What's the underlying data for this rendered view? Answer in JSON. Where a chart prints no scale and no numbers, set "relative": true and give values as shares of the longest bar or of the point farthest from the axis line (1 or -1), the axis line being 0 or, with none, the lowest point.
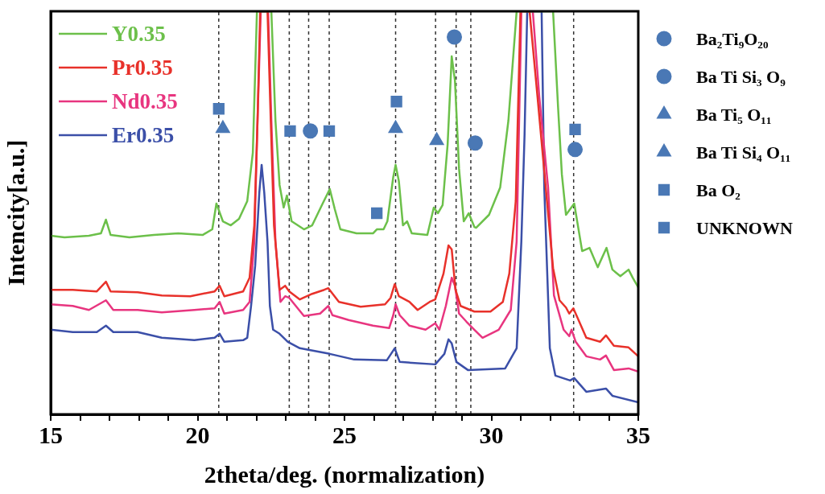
{
  "chart_data": {
    "type": "line",
    "relative": true,
    "xlabel": "2theta/deg. (normalization)",
    "ylabel": "Intencity[a.u.]",
    "xlim": [
      15,
      35
    ],
    "xticks": [
      15,
      {
        "value": 16,
        "label": null
      },
      {
        "value": 17,
        "label": null
      },
      {
        "value": 18,
        "label": null
      },
      {
        "value": 19,
        "label": null
      },
      20,
      {
        "value": 21,
        "label": null
      },
      {
        "value": 22,
        "label": null
      },
      {
        "value": 23,
        "label": null
      },
      {
        "value": 24,
        "label": null
      },
      25,
      {
        "value": 26,
        "label": null
      },
      {
        "value": 27,
        "label": null
      },
      {
        "value": 28,
        "label": null
      },
      {
        "value": 29,
        "label": null
      },
      30,
      {
        "value": 31,
        "label": null
      },
      {
        "value": 32,
        "label": null
      },
      {
        "value": 33,
        "label": null
      },
      {
        "value": 34,
        "label": null
      },
      35
    ],
    "legend": "right",
    "series": [
      {
        "name": "Y0.35",
        "color": "#6cc04a",
        "x": [
          15,
          15.47,
          16.3,
          16.71,
          16.88,
          17.04,
          17.68,
          18.51,
          19.34,
          20.17,
          20.5,
          20.64,
          20.86,
          21.13,
          21.41,
          21.69,
          21.88,
          22.02,
          22.51,
          22.65,
          22.79,
          22.93,
          23.04,
          23.2,
          23.62,
          23.9,
          24.23,
          24.5,
          24.67,
          24.86,
          25.41,
          25.97,
          26.1,
          26.33,
          26.46,
          26.66,
          26.74,
          26.85,
          26.99,
          27.13,
          27.29,
          27.82,
          28.04,
          28.18,
          28.34,
          28.51,
          28.65,
          28.76,
          28.9,
          29.06,
          29.23,
          29.42,
          29.48,
          29.92,
          30.3,
          30.58,
          30.86,
          32.1,
          32.27,
          32.4,
          32.54,
          32.82,
          33.09,
          33.34,
          33.62,
          33.92,
          34.12,
          34.39,
          34.67,
          34.81,
          35
        ],
        "values": [
          0.443,
          0.439,
          0.443,
          0.449,
          0.483,
          0.445,
          0.439,
          0.445,
          0.449,
          0.445,
          0.459,
          0.523,
          0.479,
          0.469,
          0.485,
          0.529,
          0.649,
          1,
          1,
          0.729,
          0.569,
          0.513,
          0.543,
          0.479,
          0.459,
          0.469,
          0.519,
          0.559,
          0.509,
          0.459,
          0.449,
          0.449,
          0.459,
          0.459,
          0.479,
          0.589,
          0.619,
          0.579,
          0.469,
          0.479,
          0.449,
          0.445,
          0.513,
          0.499,
          0.519,
          0.669,
          0.888,
          0.828,
          0.609,
          0.479,
          0.499,
          0.465,
          0.463,
          0.495,
          0.563,
          0.729,
          1,
          1,
          0.762,
          0.595,
          0.495,
          0.523,
          0.405,
          0.413,
          0.365,
          0.413,
          0.359,
          0.343,
          0.359,
          0.339,
          0.315
        ]
      },
      {
        "name": "Pr0.35",
        "color": "#e8312a",
        "x": [
          15,
          15.75,
          16.57,
          16.88,
          17.04,
          17.96,
          18.78,
          19.75,
          20.58,
          20.75,
          20.91,
          21.55,
          21.77,
          21.93,
          22.04,
          22.13,
          22.38,
          22.49,
          22.6,
          22.79,
          22.98,
          23.12,
          23.48,
          23.9,
          24.31,
          24.45,
          24.81,
          25.55,
          26.38,
          26.57,
          26.71,
          26.85,
          27.21,
          27.49,
          27.9,
          28.09,
          28.37,
          28.54,
          28.65,
          28.78,
          28.95,
          29.42,
          29.97,
          30.39,
          30.61,
          30.83,
          30.99,
          31.3,
          31.57,
          31.85,
          32.1,
          32.32,
          32.54,
          32.65,
          32.79,
          32.93,
          33.23,
          33.7,
          33.9,
          34.17,
          34.67,
          35
        ],
        "values": [
          0.309,
          0.309,
          0.305,
          0.329,
          0.305,
          0.303,
          0.295,
          0.293,
          0.305,
          0.319,
          0.293,
          0.305,
          0.339,
          0.469,
          0.729,
          1,
          1,
          0.729,
          0.469,
          0.309,
          0.319,
          0.305,
          0.285,
          0.299,
          0.309,
          0.313,
          0.279,
          0.267,
          0.273,
          0.289,
          0.323,
          0.293,
          0.279,
          0.259,
          0.279,
          0.285,
          0.349,
          0.419,
          0.409,
          0.309,
          0.269,
          0.255,
          0.255,
          0.279,
          0.349,
          0.529,
          1,
          1,
          0.788,
          0.563,
          0.363,
          0.283,
          0.265,
          0.25,
          0.263,
          0.24,
          0.19,
          0.18,
          0.196,
          0.17,
          0.166,
          0.144
        ]
      },
      {
        "name": "Nd0.35",
        "color": "#e8357f",
        "x": [
          15,
          15.75,
          16.3,
          16.88,
          17.13,
          17.96,
          18.78,
          19.89,
          20.58,
          20.75,
          20.91,
          21.55,
          21.77,
          21.93,
          22.04,
          22.15,
          22.4,
          22.51,
          22.65,
          22.82,
          22.98,
          23.12,
          23.62,
          24.17,
          24.45,
          24.59,
          25.14,
          25.97,
          26.52,
          26.66,
          26.74,
          26.88,
          27.21,
          27.76,
          28.09,
          28.23,
          28.45,
          28.65,
          28.76,
          28.9,
          29.15,
          29.42,
          29.7,
          30.25,
          30.66,
          30.86,
          31.02,
          31.41,
          31.63,
          31.93,
          32.13,
          32.46,
          32.65,
          32.73,
          32.87,
          33.23,
          33.7,
          33.9,
          34.17,
          34.67,
          35
        ],
        "values": [
          0.273,
          0.269,
          0.259,
          0.283,
          0.259,
          0.259,
          0.253,
          0.259,
          0.263,
          0.279,
          0.25,
          0.259,
          0.279,
          0.429,
          0.729,
          1,
          1,
          0.729,
          0.429,
          0.279,
          0.293,
          0.289,
          0.244,
          0.25,
          0.269,
          0.246,
          0.234,
          0.22,
          0.214,
          0.246,
          0.273,
          0.246,
          0.22,
          0.21,
          0.226,
          0.21,
          0.269,
          0.339,
          0.319,
          0.25,
          0.23,
          0.21,
          0.19,
          0.21,
          0.259,
          0.429,
          1,
          1,
          0.788,
          0.563,
          0.295,
          0.21,
          0.194,
          0.21,
          0.18,
          0.144,
          0.136,
          0.146,
          0.11,
          0.114,
          0.106
        ]
      },
      {
        "name": "Er0.35",
        "color": "#3b4fa8",
        "x": [
          15,
          15.75,
          16.57,
          16.88,
          17.13,
          17.96,
          18.78,
          19.89,
          20.58,
          20.75,
          20.91,
          21.55,
          21.69,
          21.82,
          21.96,
          22.1,
          22.18,
          22.27,
          22.38,
          22.46,
          22.57,
          22.79,
          23.07,
          23.48,
          24.5,
          25.33,
          26.44,
          26.71,
          26.88,
          28.09,
          28.4,
          28.54,
          28.65,
          28.81,
          29.2,
          30.47,
          30.86,
          31.02,
          31.13,
          31.22,
          31.71,
          31.8,
          31.99,
          32.18,
          32.68,
          32.82,
          33.23,
          33.9,
          34.12,
          35
        ],
        "values": [
          0.21,
          0.204,
          0.204,
          0.22,
          0.204,
          0.204,
          0.19,
          0.184,
          0.19,
          0.2,
          0.18,
          0.184,
          0.19,
          0.269,
          0.369,
          0.549,
          0.619,
          0.549,
          0.429,
          0.269,
          0.21,
          0.2,
          0.18,
          0.164,
          0.15,
          0.136,
          0.134,
          0.164,
          0.13,
          0.124,
          0.15,
          0.186,
          0.176,
          0.13,
          0.11,
          0.114,
          0.164,
          0.429,
          0.695,
          1,
          1,
          0.563,
          0.164,
          0.096,
          0.084,
          0.09,
          0.056,
          0.064,
          0.046,
          0.03
        ]
      },
      {
        "name": "Ba₂Ti₉O₂₀",
        "type": "scatter",
        "marker": "circle",
        "color": "#4a78b5",
        "x": [
          28.74,
          29.45
        ],
        "values": [
          0.936,
          0.673
        ]
      },
      {
        "name": "Ba Ti Si₃ O₉",
        "type": "scatter",
        "marker": "circle",
        "color": "#4a78b5",
        "x": [
          23.84,
          32.85
        ],
        "values": [
          0.703,
          0.657
        ]
      },
      {
        "name": "Ba Ti₅ O₁₁",
        "type": "scatter",
        "marker": "triangle",
        "color": "#4a78b5",
        "x": [
          28.14
        ],
        "values": [
          0.679
        ]
      },
      {
        "name": "Ba Ti Si₄ O₁₁",
        "type": "scatter",
        "marker": "triangle",
        "color": "#4a78b5",
        "x": [
          20.86,
          26.74
        ],
        "values": [
          0.709,
          0.709
        ]
      },
      {
        "name": "Ba O₂",
        "type": "scatter",
        "marker": "square",
        "color": "#4a78b5",
        "x": [
          20.72,
          26.77,
          26.1,
          32.85
        ],
        "values": [
          0.758,
          0.776,
          0.499,
          0.707
        ]
      },
      {
        "name": "UNKNOWN",
        "type": "scatter",
        "marker": "square",
        "color": "#4a78b5",
        "x": [
          23.15,
          24.48
        ],
        "values": [
          0.703,
          0.703
        ]
      }
    ],
    "ref_lines": [
      {
        "axis": "x",
        "value": 20.72,
        "line_style": "dashed",
        "color": "#333333"
      },
      {
        "axis": "x",
        "value": 23.12,
        "line_style": "dashed",
        "color": "#333333"
      },
      {
        "axis": "x",
        "value": 23.78,
        "line_style": "dashed",
        "color": "#333333"
      },
      {
        "axis": "x",
        "value": 24.48,
        "line_style": "dashed",
        "color": "#333333"
      },
      {
        "axis": "x",
        "value": 26.74,
        "line_style": "dashed",
        "color": "#333333"
      },
      {
        "axis": "x",
        "value": 28.1,
        "line_style": "dashed",
        "color": "#333333"
      },
      {
        "axis": "x",
        "value": 28.8,
        "line_style": "dashed",
        "color": "#333333"
      },
      {
        "axis": "x",
        "value": 29.3,
        "line_style": "dashed",
        "color": "#333333"
      },
      {
        "axis": "x",
        "value": 32.8,
        "line_style": "dashed",
        "color": "#333333"
      }
    ]
  }
}
